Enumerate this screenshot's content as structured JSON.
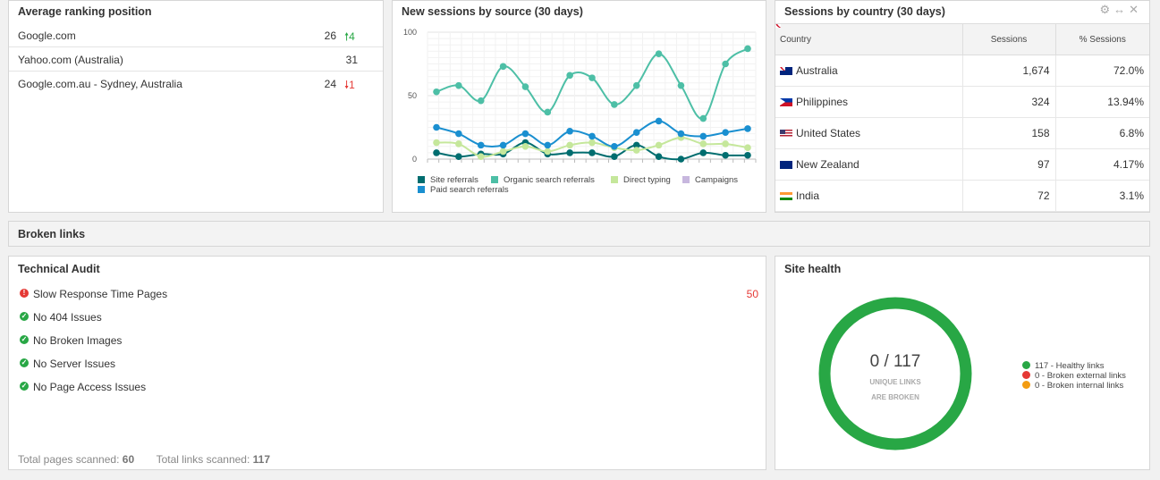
{
  "ranking": {
    "title": "Average ranking position",
    "rows": [
      {
        "name": "Google.com",
        "value": "26",
        "change": "4",
        "dir": "up"
      },
      {
        "name": "Yahoo.com (Australia)",
        "value": "31",
        "change": "",
        "dir": ""
      },
      {
        "name": "Google.com.au - Sydney, Australia",
        "value": "24",
        "change": "1",
        "dir": "down"
      }
    ]
  },
  "sessions": {
    "title": "New sessions by source (30 days)"
  },
  "chart_data": {
    "type": "line",
    "title": "New sessions by source (30 days)",
    "ylim": [
      0,
      100
    ],
    "yticks": [
      0,
      50,
      100
    ],
    "series": [
      {
        "name": "Site referrals",
        "color": "#006d6f",
        "values": [
          5,
          2,
          4,
          4,
          13,
          4,
          5,
          5,
          2,
          11,
          2,
          0,
          5,
          3,
          3
        ]
      },
      {
        "name": "Organic search referrals",
        "color": "#4dbfa6",
        "values": [
          53,
          58,
          46,
          73,
          57,
          37,
          66,
          64,
          43,
          58,
          83,
          58,
          32,
          75,
          87
        ]
      },
      {
        "name": "Direct typing",
        "color": "#c5e79b",
        "values": [
          13,
          12,
          2,
          6,
          10,
          6,
          11,
          13,
          9,
          7,
          11,
          17,
          12,
          12,
          9
        ]
      },
      {
        "name": "Campaigns",
        "color": "#c7b7de",
        "values": [
          0,
          0,
          0,
          0,
          0,
          0,
          0,
          0,
          0,
          0,
          0,
          0,
          0,
          0,
          0
        ]
      },
      {
        "name": "Paid search referrals",
        "color": "#1a8fd0",
        "values": [
          25,
          20,
          11,
          11,
          20,
          11,
          22,
          18,
          10,
          21,
          30,
          20,
          18,
          21,
          24
        ]
      }
    ]
  },
  "country": {
    "title": "Sessions by country (30 days)",
    "icons": [
      "gear-icon",
      "resize-icon",
      "close-icon"
    ],
    "columns": [
      "Country",
      "Sessions",
      "% Sessions"
    ],
    "rows": [
      {
        "country": "Australia",
        "flag": "au",
        "sessions": "1,674",
        "pct": "72.0%"
      },
      {
        "country": "Philippines",
        "flag": "ph",
        "sessions": "324",
        "pct": "13.94%"
      },
      {
        "country": "United States",
        "flag": "us",
        "sessions": "158",
        "pct": "6.8%"
      },
      {
        "country": "New Zealand",
        "flag": "nz",
        "sessions": "97",
        "pct": "4.17%"
      },
      {
        "country": "India",
        "flag": "in",
        "sessions": "72",
        "pct": "3.1%"
      }
    ]
  },
  "broken": {
    "title": "Broken links"
  },
  "audit": {
    "title": "Technical Audit",
    "items": [
      {
        "label": "Slow Response Time Pages",
        "status": "error",
        "count": "50"
      },
      {
        "label": "No 404 Issues",
        "status": "ok",
        "count": ""
      },
      {
        "label": "No Broken Images",
        "status": "ok",
        "count": ""
      },
      {
        "label": "No Server Issues",
        "status": "ok",
        "count": ""
      },
      {
        "label": "No Page Access Issues",
        "status": "ok",
        "count": ""
      }
    ],
    "pages_label": "Total pages scanned:",
    "pages_value": "60",
    "links_label": "Total links scanned:",
    "links_value": "117"
  },
  "health": {
    "title": "Site health",
    "ratio": "0 / 117",
    "caption1": "UNIQUE LINKS",
    "caption2": "ARE BROKEN",
    "legend": [
      {
        "label": "117 - Healthy links",
        "color": "#28a745"
      },
      {
        "label": "0 - Broken external links",
        "color": "#e53935"
      },
      {
        "label": "0 - Broken internal links",
        "color": "#f39c12"
      }
    ],
    "ring_color": "#28a745"
  }
}
